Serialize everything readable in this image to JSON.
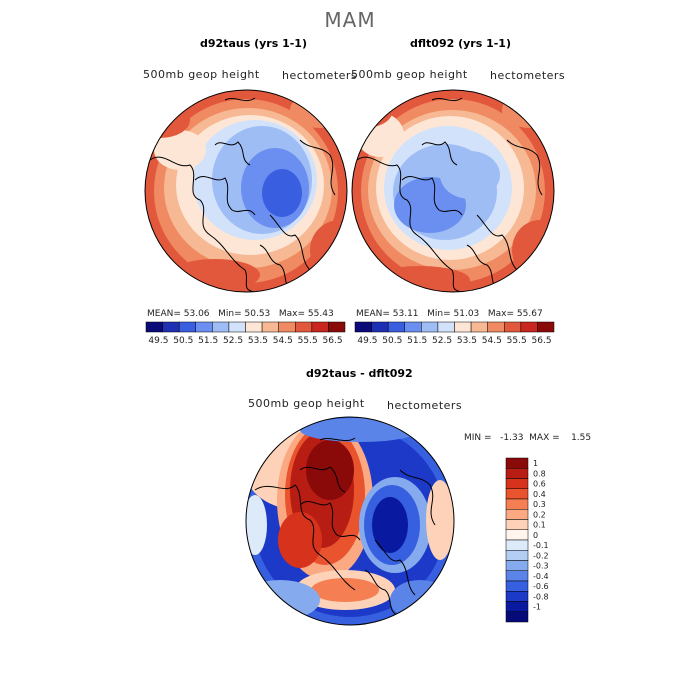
{
  "season": "MAM",
  "panels": [
    {
      "title": "d92taus (yrs 1-1)",
      "variable": "500mb geop height",
      "units": "hectometers",
      "stats": {
        "mean_label": "MEAN=",
        "mean": "53.06",
        "min_label": "Min=",
        "min": "50.53",
        "max_label": "Max=",
        "max": "55.43"
      }
    },
    {
      "title": "dflt092 (yrs 1-1)",
      "variable": "500mb geop height",
      "units": "hectometers",
      "stats": {
        "mean_label": "MEAN=",
        "mean": "53.11",
        "min_label": "Min=",
        "min": "51.03",
        "max_label": "Max=",
        "max": "55.67"
      }
    }
  ],
  "diff": {
    "title": "d92taus - dflt092",
    "variable": "500mb geop height",
    "units": "hectometers",
    "stats_text": "MIN =   -1.33  MAX =    1.55"
  },
  "chart_data": [
    {
      "type": "heatmap",
      "title": "d92taus (yrs 1-1)",
      "projection": "north polar stereographic",
      "colorbar_ticks": [
        "49.5",
        "50.5",
        "51.5",
        "52.5",
        "53.5",
        "54.5",
        "55.5",
        "56.5"
      ],
      "colorbar_colors": [
        "#0a0a78",
        "#1f2fb4",
        "#3a5ee0",
        "#6a8ff0",
        "#9fbdf5",
        "#d2e2fa",
        "#fde6d5",
        "#f7b894",
        "#ef8a62",
        "#e2583c",
        "#c8261e",
        "#8a0a0a"
      ],
      "mean": 53.06,
      "min": 50.53,
      "max": 55.43
    },
    {
      "type": "heatmap",
      "title": "dflt092 (yrs 1-1)",
      "projection": "north polar stereographic",
      "colorbar_ticks": [
        "49.5",
        "50.5",
        "51.5",
        "52.5",
        "53.5",
        "54.5",
        "55.5",
        "56.5"
      ],
      "colorbar_colors": [
        "#0a0a78",
        "#1f2fb4",
        "#3a5ee0",
        "#6a8ff0",
        "#9fbdf5",
        "#d2e2fa",
        "#fde6d5",
        "#f7b894",
        "#ef8a62",
        "#e2583c",
        "#c8261e",
        "#8a0a0a"
      ],
      "mean": 53.11,
      "min": 51.03,
      "max": 55.67
    },
    {
      "type": "heatmap",
      "title": "d92taus - dflt092",
      "projection": "north polar stereographic",
      "colorbar_ticks": [
        "1",
        "0.8",
        "0.6",
        "0.4",
        "0.3",
        "0.2",
        "0.1",
        "0",
        "-0.1",
        "-0.2",
        "-0.3",
        "-0.4",
        "-0.6",
        "-0.8",
        "-1"
      ],
      "colorbar_colors": [
        "#8a0a0a",
        "#b81d14",
        "#d6321c",
        "#e9532e",
        "#f57f52",
        "#fba982",
        "#fdd2b8",
        "#fff5ec",
        "#ddeaf9",
        "#b4cdf3",
        "#86aaee",
        "#5b84e8",
        "#3760e0",
        "#1d39c8",
        "#0a1aa0",
        "#050a78"
      ],
      "min": -1.33,
      "max": 1.55
    }
  ]
}
